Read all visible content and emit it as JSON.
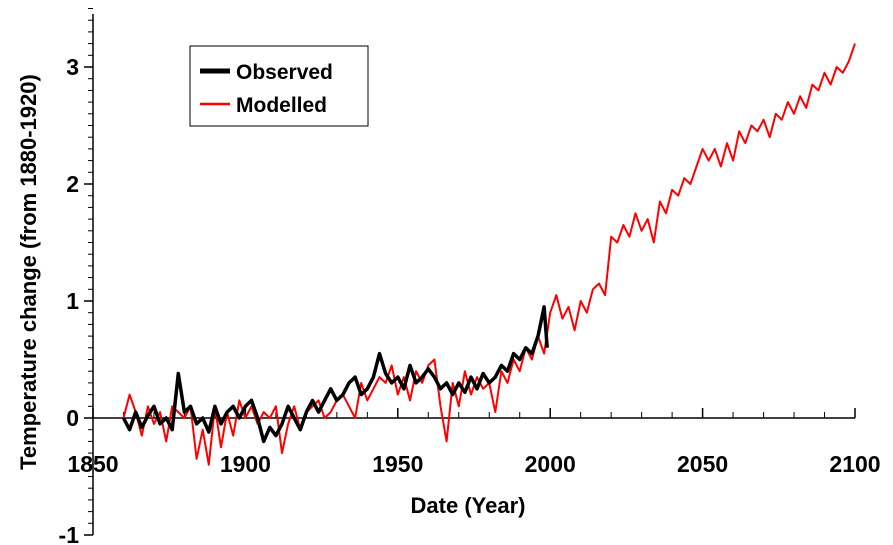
{
  "chart_data": {
    "type": "line",
    "title": "",
    "xlabel": "Date (Year)",
    "ylabel": "Temperature change (from 1880-1920)",
    "xlim": [
      1850,
      2100
    ],
    "ylim": [
      -1,
      3.5
    ],
    "x_ticks": [
      1850,
      1900,
      1950,
      2000,
      2050,
      2100
    ],
    "x_tick_labels": [
      "1850",
      "1900",
      "1950",
      "2000",
      "2050",
      "2100"
    ],
    "y_ticks": [
      -1,
      0,
      1,
      2,
      3
    ],
    "y_tick_labels": [
      "-1",
      "0",
      "1",
      "2",
      "3"
    ],
    "grid": false,
    "legend_position": "top-left",
    "series": [
      {
        "name": "Observed",
        "color": "#000000",
        "x": [
          1860,
          1862,
          1864,
          1866,
          1868,
          1870,
          1872,
          1874,
          1876,
          1878,
          1880,
          1882,
          1884,
          1886,
          1888,
          1890,
          1892,
          1894,
          1896,
          1898,
          1900,
          1902,
          1904,
          1906,
          1908,
          1910,
          1912,
          1914,
          1916,
          1918,
          1920,
          1922,
          1924,
          1926,
          1928,
          1930,
          1932,
          1934,
          1936,
          1938,
          1940,
          1942,
          1944,
          1946,
          1948,
          1950,
          1952,
          1954,
          1956,
          1958,
          1960,
          1962,
          1964,
          1966,
          1968,
          1970,
          1972,
          1974,
          1976,
          1978,
          1980,
          1982,
          1984,
          1986,
          1988,
          1990,
          1992,
          1994,
          1996,
          1998,
          1999
        ],
        "y": [
          0.0,
          -0.1,
          0.05,
          -0.08,
          0.02,
          0.1,
          -0.05,
          0.0,
          -0.1,
          0.38,
          0.05,
          0.1,
          -0.05,
          0.0,
          -0.12,
          0.1,
          -0.05,
          0.05,
          0.1,
          0.0,
          0.1,
          0.15,
          0.0,
          -0.2,
          -0.08,
          -0.15,
          -0.05,
          0.1,
          0.0,
          -0.1,
          0.05,
          0.15,
          0.05,
          0.15,
          0.25,
          0.15,
          0.2,
          0.3,
          0.35,
          0.2,
          0.25,
          0.35,
          0.55,
          0.38,
          0.3,
          0.35,
          0.25,
          0.45,
          0.3,
          0.35,
          0.42,
          0.35,
          0.25,
          0.3,
          0.2,
          0.3,
          0.22,
          0.35,
          0.25,
          0.38,
          0.3,
          0.35,
          0.45,
          0.4,
          0.55,
          0.5,
          0.6,
          0.55,
          0.7,
          0.95,
          0.6
        ]
      },
      {
        "name": "Modelled",
        "color": "#ff0000",
        "x": [
          1860,
          1862,
          1864,
          1866,
          1868,
          1870,
          1872,
          1874,
          1876,
          1878,
          1880,
          1882,
          1884,
          1886,
          1888,
          1890,
          1892,
          1894,
          1896,
          1898,
          1900,
          1902,
          1904,
          1906,
          1908,
          1910,
          1912,
          1914,
          1916,
          1918,
          1920,
          1922,
          1924,
          1926,
          1928,
          1930,
          1932,
          1934,
          1936,
          1938,
          1940,
          1942,
          1944,
          1946,
          1948,
          1950,
          1952,
          1954,
          1956,
          1958,
          1960,
          1962,
          1964,
          1966,
          1968,
          1970,
          1972,
          1974,
          1976,
          1978,
          1980,
          1982,
          1984,
          1986,
          1988,
          1990,
          1992,
          1994,
          1996,
          1998,
          2000,
          2002,
          2004,
          2006,
          2008,
          2010,
          2012,
          2014,
          2016,
          2018,
          2020,
          2022,
          2024,
          2026,
          2028,
          2030,
          2032,
          2034,
          2036,
          2038,
          2040,
          2042,
          2044,
          2046,
          2048,
          2050,
          2052,
          2054,
          2056,
          2058,
          2060,
          2062,
          2064,
          2066,
          2068,
          2070,
          2072,
          2074,
          2076,
          2078,
          2080,
          2082,
          2084,
          2086,
          2088,
          2090,
          2092,
          2094,
          2096,
          2098,
          2100
        ],
        "y": [
          0.0,
          0.2,
          0.05,
          -0.15,
          0.1,
          -0.05,
          0.05,
          -0.2,
          0.1,
          0.05,
          0.0,
          0.1,
          -0.35,
          -0.1,
          -0.4,
          0.1,
          -0.25,
          0.05,
          -0.15,
          0.15,
          0.0,
          0.1,
          -0.05,
          0.05,
          0.0,
          0.1,
          -0.3,
          -0.05,
          0.1,
          -0.1,
          0.05,
          0.1,
          0.15,
          0.0,
          0.05,
          0.15,
          0.2,
          0.1,
          0.0,
          0.3,
          0.15,
          0.25,
          0.35,
          0.3,
          0.45,
          0.2,
          0.35,
          0.15,
          0.4,
          0.3,
          0.45,
          0.5,
          0.1,
          -0.2,
          0.3,
          0.1,
          0.4,
          0.2,
          0.35,
          0.25,
          0.3,
          0.05,
          0.4,
          0.3,
          0.5,
          0.4,
          0.6,
          0.5,
          0.7,
          0.55,
          0.9,
          1.05,
          0.85,
          0.95,
          0.75,
          1.0,
          0.9,
          1.1,
          1.15,
          1.05,
          1.55,
          1.5,
          1.65,
          1.55,
          1.75,
          1.6,
          1.7,
          1.5,
          1.85,
          1.75,
          1.95,
          1.9,
          2.05,
          2.0,
          2.15,
          2.3,
          2.2,
          2.3,
          2.15,
          2.35,
          2.2,
          2.45,
          2.35,
          2.5,
          2.45,
          2.55,
          2.4,
          2.6,
          2.55,
          2.7,
          2.6,
          2.75,
          2.65,
          2.85,
          2.8,
          2.95,
          2.85,
          3.0,
          2.95,
          3.05,
          3.2
        ]
      }
    ]
  }
}
